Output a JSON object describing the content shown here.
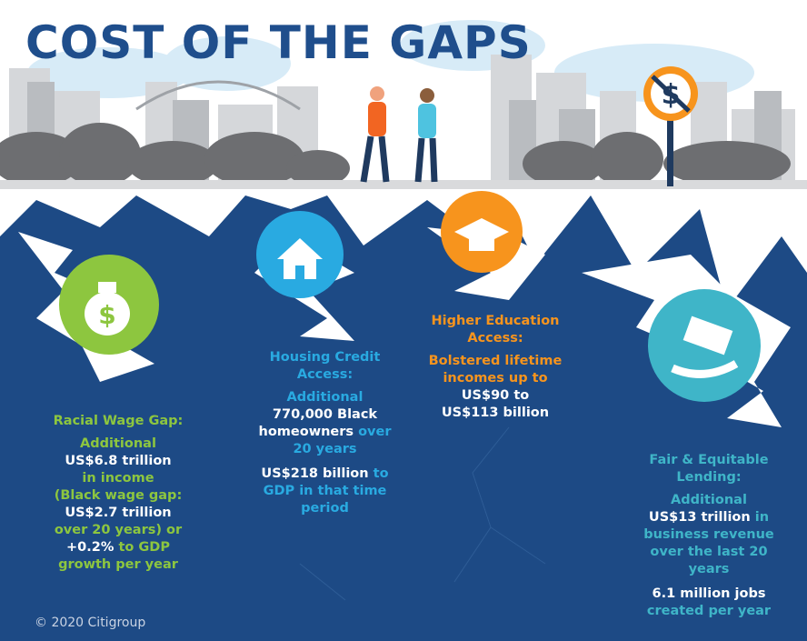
{
  "title": "COST OF THE GAPS",
  "racial_wage_gap": {
    "heading": "Racial Wage Gap:",
    "lines": [
      "Additional",
      "US$6.8 trillion",
      "in income",
      "(Black wage gap:",
      "US$2.7 trillion",
      "over 20 years) or",
      "+0.2%",
      "to GDP",
      "growth per year"
    ]
  },
  "housing_credit": {
    "heading": "Housing Credit Access:",
    "lines": [
      "Additional",
      "770,000 Black",
      "homeowners",
      "over",
      "20 years"
    ],
    "gdp_lines": [
      "US$218 billion",
      "to",
      "GDP in that time",
      "period"
    ]
  },
  "higher_education": {
    "heading": "Higher Education Access:",
    "lines": [
      "Bolstered lifetime",
      "incomes up to",
      "US$90 to",
      "US$113 billion"
    ]
  },
  "fair_lending": {
    "heading": "Fair & Equitable Lending:",
    "lines": [
      "Additional",
      "US$13 trillion",
      "in",
      "business revenue",
      "over the last 20",
      "years"
    ],
    "jobs_lines": [
      "6.1 million jobs",
      "created per year"
    ]
  },
  "footer": "© 2020 Citigroup"
}
